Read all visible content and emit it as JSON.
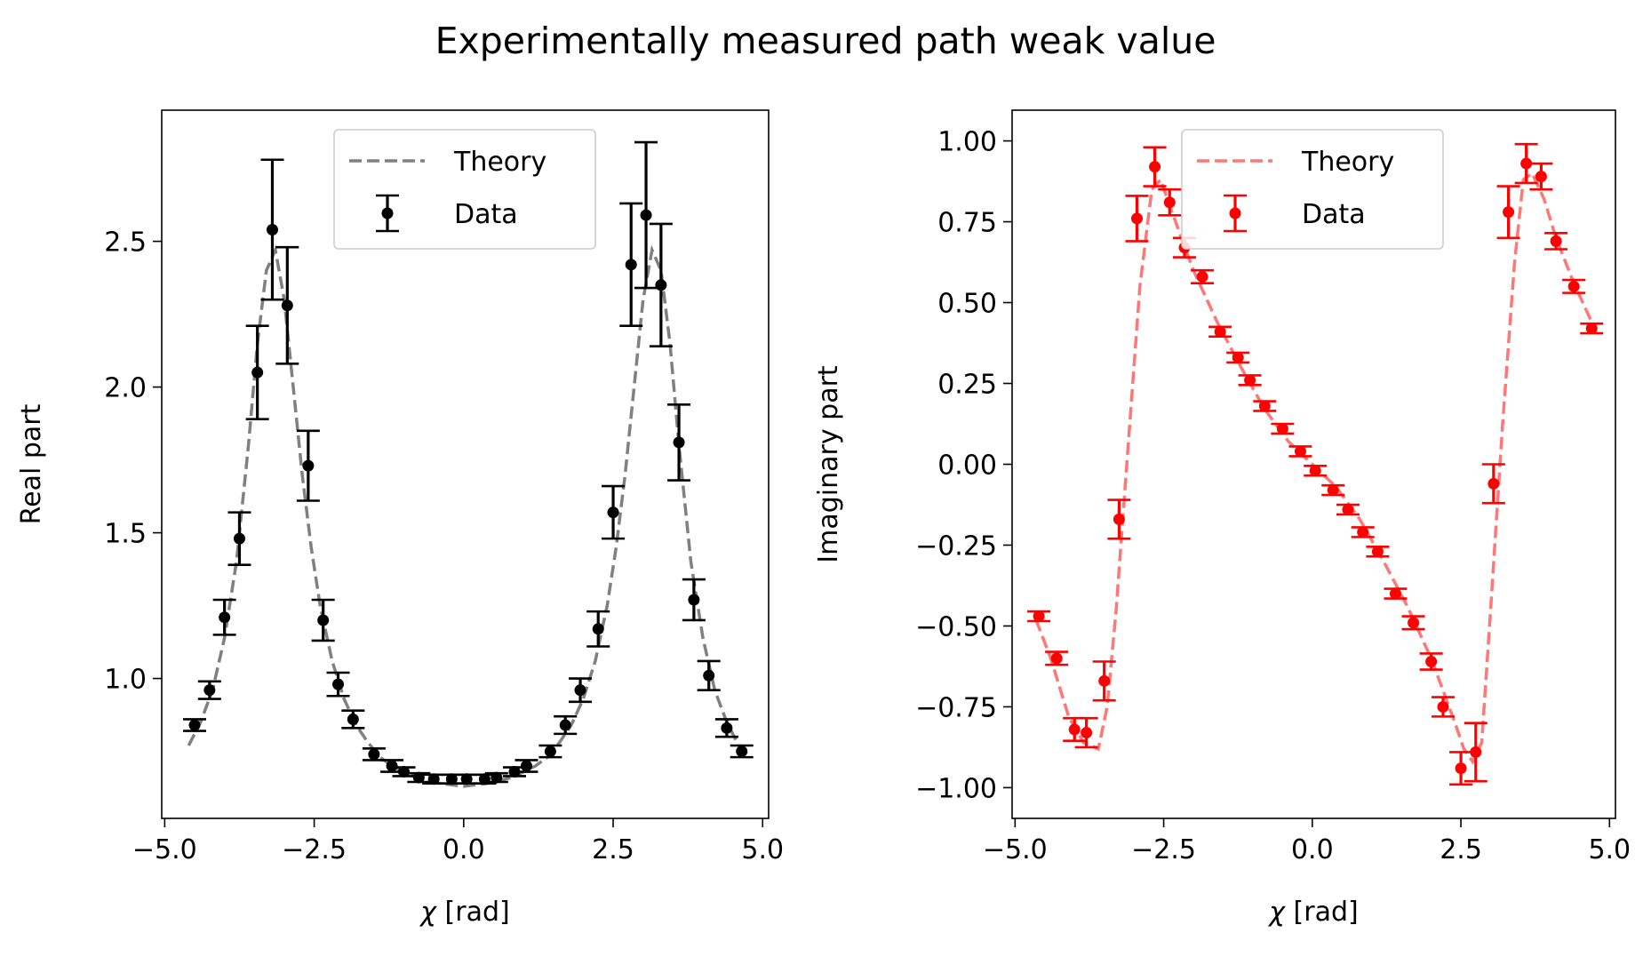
{
  "figure": {
    "title": "Experimentally measured path weak value"
  },
  "chart_data": [
    {
      "type": "scatter",
      "title": "",
      "xlabel": "χ [rad]",
      "ylabel": "Real part",
      "xlim": [
        -5.05,
        5.1
      ],
      "ylim": [
        0.52,
        2.95
      ],
      "xticks": [
        -5.0,
        -2.5,
        0.0,
        2.5,
        5.0
      ],
      "xtick_labels": [
        "−5.0",
        "−2.5",
        "0.0",
        "2.5",
        "5.0"
      ],
      "yticks": [
        1.0,
        1.5,
        2.0,
        2.5
      ],
      "ytick_labels": [
        "1.0",
        "1.5",
        "2.0",
        "2.5"
      ],
      "legend": {
        "placement": "top-center",
        "entries": [
          "Theory",
          "Data"
        ]
      },
      "grid": false,
      "series": [
        {
          "name": "Theory",
          "kind": "line",
          "style": "dashed",
          "color": "#808080",
          "x": [
            -4.6,
            -4.4,
            -4.2,
            -4.0,
            -3.8,
            -3.6,
            -3.45,
            -3.3,
            -3.15,
            -3.0,
            -2.85,
            -2.7,
            -2.55,
            -2.4,
            -2.2,
            -2.0,
            -1.8,
            -1.6,
            -1.4,
            -1.2,
            -1.0,
            -0.8,
            -0.6,
            -0.4,
            -0.2,
            0.0,
            0.2,
            0.4,
            0.6,
            0.8,
            1.0,
            1.2,
            1.4,
            1.6,
            1.8,
            2.0,
            2.2,
            2.4,
            2.55,
            2.7,
            2.85,
            3.0,
            3.15,
            3.3,
            3.45,
            3.6,
            3.8,
            4.0,
            4.2,
            4.4,
            4.6,
            4.75
          ],
          "y": [
            0.77,
            0.85,
            0.96,
            1.14,
            1.4,
            1.8,
            2.15,
            2.4,
            2.47,
            2.3,
            2.0,
            1.7,
            1.45,
            1.25,
            1.06,
            0.93,
            0.84,
            0.78,
            0.73,
            0.7,
            0.68,
            0.66,
            0.65,
            0.64,
            0.635,
            0.63,
            0.635,
            0.64,
            0.65,
            0.66,
            0.68,
            0.7,
            0.73,
            0.78,
            0.84,
            0.93,
            1.06,
            1.25,
            1.45,
            1.7,
            2.0,
            2.3,
            2.47,
            2.4,
            2.15,
            1.8,
            1.4,
            1.14,
            0.96,
            0.85,
            0.77,
            0.74
          ]
        },
        {
          "name": "Data",
          "kind": "errorbar",
          "color": "#000000",
          "x": [
            -4.5,
            -4.25,
            -4.0,
            -3.75,
            -3.45,
            -3.2,
            -2.95,
            -2.6,
            -2.35,
            -2.1,
            -1.85,
            -1.5,
            -1.2,
            -1.0,
            -0.75,
            -0.5,
            -0.2,
            0.05,
            0.35,
            0.55,
            0.85,
            1.05,
            1.45,
            1.7,
            1.95,
            2.25,
            2.5,
            2.8,
            3.05,
            3.3,
            3.6,
            3.85,
            4.1,
            4.4,
            4.65
          ],
          "y": [
            0.84,
            0.96,
            1.21,
            1.48,
            2.05,
            2.54,
            2.28,
            1.73,
            1.2,
            0.98,
            0.86,
            0.74,
            0.7,
            0.68,
            0.66,
            0.655,
            0.655,
            0.655,
            0.655,
            0.66,
            0.68,
            0.7,
            0.75,
            0.84,
            0.96,
            1.17,
            1.57,
            2.42,
            2.59,
            2.35,
            1.81,
            1.27,
            1.01,
            0.83,
            0.75
          ],
          "err": [
            0.02,
            0.03,
            0.06,
            0.09,
            0.16,
            0.24,
            0.2,
            0.12,
            0.07,
            0.04,
            0.03,
            0.02,
            0.02,
            0.015,
            0.015,
            0.015,
            0.015,
            0.015,
            0.015,
            0.015,
            0.015,
            0.02,
            0.02,
            0.03,
            0.04,
            0.06,
            0.09,
            0.21,
            0.25,
            0.21,
            0.13,
            0.07,
            0.05,
            0.03,
            0.02
          ]
        }
      ]
    },
    {
      "type": "scatter",
      "title": "",
      "xlabel": "χ [rad]",
      "ylabel": "Imaginary part",
      "xlim": [
        -5.05,
        5.1
      ],
      "ylim": [
        -1.095,
        1.095
      ],
      "xticks": [
        -5.0,
        -2.5,
        0.0,
        2.5,
        5.0
      ],
      "xtick_labels": [
        "−5.0",
        "−2.5",
        "0.0",
        "2.5",
        "5.0"
      ],
      "yticks": [
        1.0,
        0.75,
        0.5,
        0.25,
        0.0,
        -0.25,
        -0.5,
        -0.75,
        -1.0
      ],
      "ytick_labels": [
        "1.00",
        "0.75",
        "0.50",
        "0.25",
        "0.00",
        "−0.25",
        "−0.50",
        "−0.75",
        "−1.00"
      ],
      "legend": {
        "placement": "top-center",
        "entries": [
          "Theory",
          "Data"
        ]
      },
      "grid": false,
      "series": [
        {
          "name": "Theory",
          "kind": "line",
          "style": "dashed",
          "color": "#ff7777",
          "x": [
            -4.65,
            -4.4,
            -4.1,
            -3.85,
            -3.6,
            -3.45,
            -3.3,
            -3.1,
            -2.9,
            -2.7,
            -2.55,
            -2.4,
            -2.2,
            -2.0,
            -1.6,
            -1.2,
            -0.8,
            -0.4,
            0.0,
            0.4,
            0.8,
            1.2,
            1.6,
            2.0,
            2.2,
            2.4,
            2.55,
            2.7,
            2.85,
            3.0,
            3.2,
            3.4,
            3.55,
            3.7,
            3.9,
            4.1,
            4.4,
            4.75
          ],
          "y": [
            -0.48,
            -0.6,
            -0.78,
            -0.86,
            -0.88,
            -0.75,
            -0.45,
            0.05,
            0.55,
            0.85,
            0.88,
            0.8,
            0.7,
            0.6,
            0.44,
            0.3,
            0.17,
            0.07,
            0.0,
            -0.07,
            -0.17,
            -0.3,
            -0.44,
            -0.6,
            -0.7,
            -0.8,
            -0.88,
            -0.92,
            -0.86,
            -0.45,
            0.12,
            0.62,
            0.88,
            0.9,
            0.82,
            0.7,
            0.56,
            0.42
          ]
        },
        {
          "name": "Data",
          "kind": "errorbar",
          "color": "#ff0000",
          "x": [
            -4.6,
            -4.3,
            -4.0,
            -3.8,
            -3.5,
            -3.25,
            -2.95,
            -2.65,
            -2.4,
            -2.15,
            -1.85,
            -1.55,
            -1.25,
            -1.05,
            -0.8,
            -0.5,
            -0.2,
            0.05,
            0.35,
            0.6,
            0.85,
            1.1,
            1.4,
            1.7,
            2.0,
            2.2,
            2.5,
            2.75,
            3.05,
            3.3,
            3.6,
            3.85,
            4.1,
            4.4,
            4.7
          ],
          "y": [
            -0.47,
            -0.6,
            -0.82,
            -0.83,
            -0.67,
            -0.17,
            0.76,
            0.92,
            0.81,
            0.67,
            0.58,
            0.41,
            0.33,
            0.26,
            0.18,
            0.11,
            0.04,
            -0.02,
            -0.08,
            -0.14,
            -0.21,
            -0.27,
            -0.4,
            -0.49,
            -0.61,
            -0.75,
            -0.94,
            -0.89,
            -0.06,
            0.78,
            0.93,
            0.89,
            0.69,
            0.55,
            0.42
          ],
          "err": [
            0.015,
            0.02,
            0.035,
            0.045,
            0.06,
            0.06,
            0.07,
            0.06,
            0.04,
            0.03,
            0.02,
            0.015,
            0.015,
            0.015,
            0.015,
            0.015,
            0.015,
            0.015,
            0.015,
            0.015,
            0.015,
            0.015,
            0.015,
            0.02,
            0.025,
            0.03,
            0.05,
            0.09,
            0.06,
            0.08,
            0.06,
            0.04,
            0.025,
            0.02,
            0.015
          ]
        }
      ]
    }
  ]
}
